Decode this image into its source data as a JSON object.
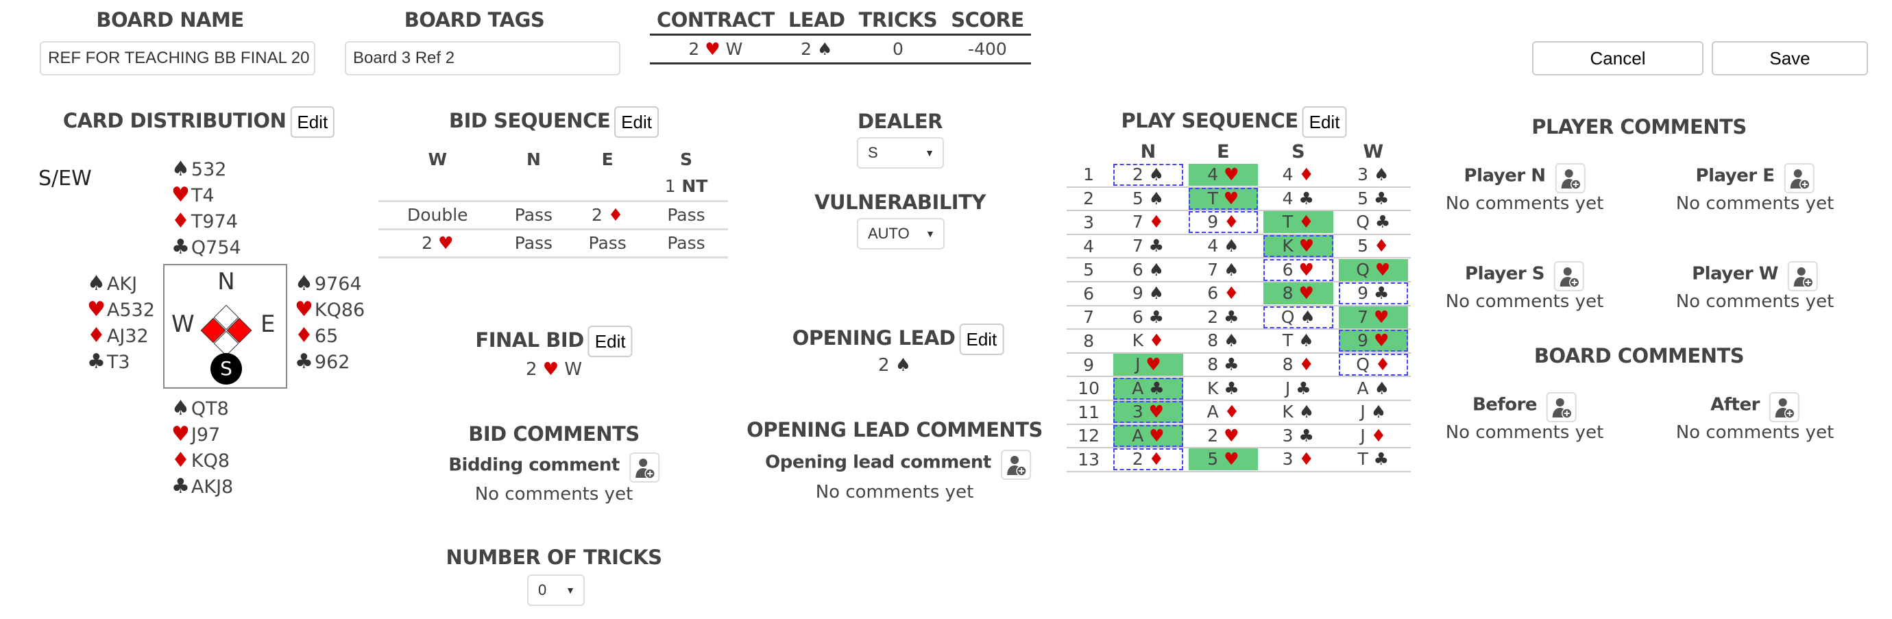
{
  "colors": {
    "red_suit": "#d40000",
    "black_suit": "#333333",
    "winner": "#66cc80",
    "leader_outline": "#4444ff"
  },
  "board_name": {
    "label": "BOARD NAME",
    "value": "REF FOR TEACHING BB FINAL 20"
  },
  "board_tags": {
    "label": "BOARD TAGS",
    "value": "Board 3 Ref 2"
  },
  "summary": {
    "headers": [
      "CONTRACT",
      "LEAD",
      "TRICKS",
      "SCORE"
    ],
    "contract_level": "2",
    "contract_suit": "hearts",
    "declarer": "W",
    "lead_rank": "2",
    "lead_suit": "spades",
    "tricks": "0",
    "score": "-400"
  },
  "actions": {
    "cancel": "Cancel",
    "save": "Save"
  },
  "card_distribution": {
    "title": "CARD DISTRIBUTION",
    "edit": "Edit",
    "dealer_vul": "S/EW",
    "compass": {
      "n": "N",
      "e": "E",
      "s": "S",
      "w": "W",
      "dealer": "S",
      "vulnerable": "EW"
    },
    "hands": {
      "north": {
        "spades": "532",
        "hearts": "T4",
        "diamonds": "T974",
        "clubs": "Q754"
      },
      "west": {
        "spades": "AKJ",
        "hearts": "A532",
        "diamonds": "AJ32",
        "clubs": "T3"
      },
      "east": {
        "spades": "9764",
        "hearts": "KQ86",
        "diamonds": "65",
        "clubs": "962"
      },
      "south": {
        "spades": "QT8",
        "hearts": "J97",
        "diamonds": "KQ8",
        "clubs": "AKJ8"
      }
    }
  },
  "bid_sequence": {
    "title": "BID SEQUENCE",
    "edit": "Edit",
    "headers": [
      "W",
      "N",
      "E",
      "S"
    ],
    "rows": [
      [
        {
          "t": ""
        },
        {
          "t": ""
        },
        {
          "t": ""
        },
        {
          "t": "1",
          "suit": "NT"
        }
      ],
      [
        {
          "t": "Double"
        },
        {
          "t": "Pass"
        },
        {
          "t": "2",
          "suit": "diamonds"
        },
        {
          "t": "Pass"
        }
      ],
      [
        {
          "t": "2",
          "suit": "hearts"
        },
        {
          "t": "Pass"
        },
        {
          "t": "Pass"
        },
        {
          "t": "Pass"
        }
      ]
    ]
  },
  "dealer": {
    "label": "DEALER",
    "value": "S"
  },
  "vulnerability": {
    "label": "VULNERABILITY",
    "value": "AUTO"
  },
  "final_bid": {
    "title": "FINAL BID",
    "edit": "Edit",
    "level": "2",
    "suit": "hearts",
    "declarer": "W"
  },
  "bid_comments": {
    "title": "BID COMMENTS",
    "label": "Bidding comment",
    "empty": "No comments yet"
  },
  "number_of_tricks": {
    "label": "NUMBER OF TRICKS",
    "value": "0"
  },
  "opening_lead": {
    "title": "OPENING LEAD",
    "edit": "Edit",
    "rank": "2",
    "suit": "spades"
  },
  "opening_lead_comments": {
    "title": "OPENING LEAD COMMENTS",
    "label": "Opening lead comment",
    "empty": "No comments yet"
  },
  "play_sequence": {
    "title": "PLAY SEQUENCE",
    "edit": "Edit",
    "headers": [
      "N",
      "E",
      "S",
      "W"
    ],
    "tricks": [
      [
        [
          "2",
          "spades",
          "L"
        ],
        [
          "4",
          "hearts",
          "W"
        ],
        [
          "4",
          "diamonds",
          ""
        ],
        [
          "3",
          "spades",
          ""
        ]
      ],
      [
        [
          "5",
          "spades",
          ""
        ],
        [
          "T",
          "hearts",
          "LW"
        ],
        [
          "4",
          "clubs",
          ""
        ],
        [
          "5",
          "clubs",
          ""
        ]
      ],
      [
        [
          "7",
          "diamonds",
          ""
        ],
        [
          "9",
          "diamonds",
          "L"
        ],
        [
          "T",
          "diamonds",
          "W"
        ],
        [
          "Q",
          "clubs",
          ""
        ]
      ],
      [
        [
          "7",
          "clubs",
          ""
        ],
        [
          "4",
          "spades",
          ""
        ],
        [
          "K",
          "hearts",
          "LW"
        ],
        [
          "5",
          "diamonds",
          ""
        ]
      ],
      [
        [
          "6",
          "spades",
          ""
        ],
        [
          "7",
          "spades",
          ""
        ],
        [
          "6",
          "hearts",
          "L"
        ],
        [
          "Q",
          "hearts",
          "W"
        ]
      ],
      [
        [
          "9",
          "spades",
          ""
        ],
        [
          "6",
          "diamonds",
          ""
        ],
        [
          "8",
          "hearts",
          "W"
        ],
        [
          "9",
          "clubs",
          "L"
        ]
      ],
      [
        [
          "6",
          "clubs",
          ""
        ],
        [
          "2",
          "clubs",
          ""
        ],
        [
          "Q",
          "spades",
          "L"
        ],
        [
          "7",
          "hearts",
          "W"
        ]
      ],
      [
        [
          "K",
          "diamonds",
          ""
        ],
        [
          "8",
          "spades",
          ""
        ],
        [
          "T",
          "spades",
          ""
        ],
        [
          "9",
          "hearts",
          "LW"
        ]
      ],
      [
        [
          "J",
          "hearts",
          "W"
        ],
        [
          "8",
          "clubs",
          ""
        ],
        [
          "8",
          "diamonds",
          ""
        ],
        [
          "Q",
          "diamonds",
          "L"
        ]
      ],
      [
        [
          "A",
          "clubs",
          "LW"
        ],
        [
          "K",
          "clubs",
          ""
        ],
        [
          "J",
          "clubs",
          ""
        ],
        [
          "A",
          "spades",
          ""
        ]
      ],
      [
        [
          "3",
          "hearts",
          "LW"
        ],
        [
          "A",
          "diamonds",
          ""
        ],
        [
          "K",
          "spades",
          ""
        ],
        [
          "J",
          "spades",
          ""
        ]
      ],
      [
        [
          "A",
          "hearts",
          "LW"
        ],
        [
          "2",
          "hearts",
          ""
        ],
        [
          "3",
          "clubs",
          ""
        ],
        [
          "J",
          "diamonds",
          ""
        ]
      ],
      [
        [
          "2",
          "diamonds",
          "L"
        ],
        [
          "5",
          "hearts",
          "W"
        ],
        [
          "3",
          "diamonds",
          ""
        ],
        [
          "T",
          "clubs",
          ""
        ]
      ]
    ]
  },
  "player_comments": {
    "title": "PLAYER COMMENTS",
    "players": [
      {
        "label": "Player N",
        "empty": "No comments yet"
      },
      {
        "label": "Player E",
        "empty": "No comments yet"
      },
      {
        "label": "Player S",
        "empty": "No comments yet"
      },
      {
        "label": "Player W",
        "empty": "No comments yet"
      }
    ]
  },
  "board_comments": {
    "title": "BOARD COMMENTS",
    "items": [
      {
        "label": "Before",
        "empty": "No comments yet"
      },
      {
        "label": "After",
        "empty": "No comments yet"
      }
    ]
  }
}
